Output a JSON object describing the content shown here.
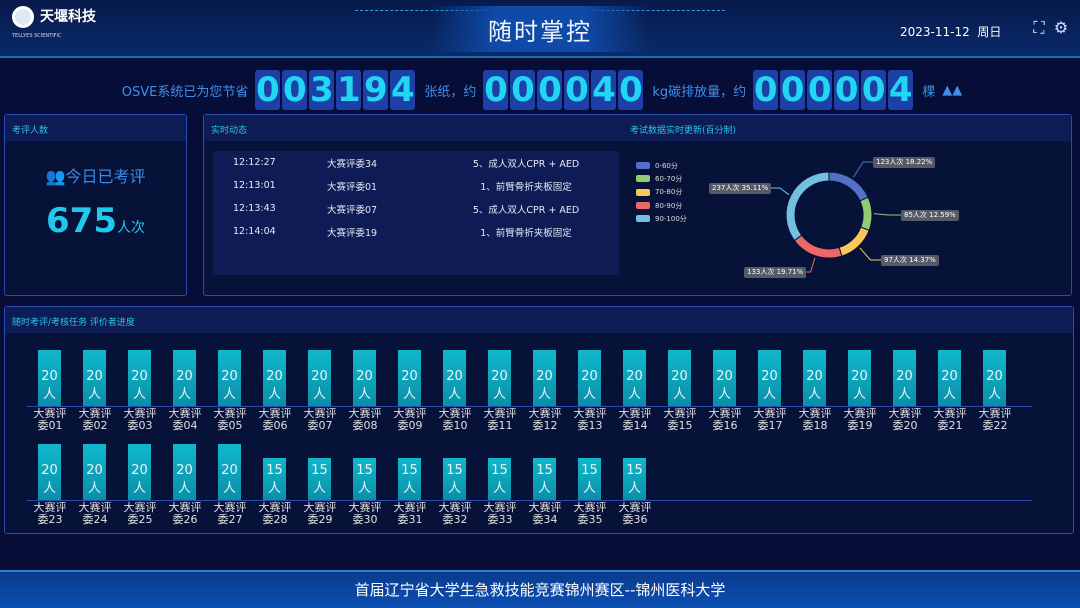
{
  "header": {
    "logo_cn": "天堰科技",
    "logo_en": "TELLYES SCIENTIFIC",
    "title": "随时掌控",
    "date": "2023-11-12",
    "weekday": "周日",
    "icons": [
      "fullscreen-icon",
      "gear-icon"
    ]
  },
  "counter": {
    "prefix": "OSVE系统已为您节省",
    "paper": "003194",
    "paper_unit": "张纸，约",
    "carbon": "000040",
    "carbon_unit": "kg碳排放量，约",
    "trees": "000004",
    "trees_unit": "棵",
    "tree_icon": "tree-icon"
  },
  "reviewers_panel": {
    "title": "考评人数",
    "label": "今日已考评",
    "count": "675",
    "unit": "人次"
  },
  "feed_panel": {
    "title": "实时动态",
    "rows": [
      [
        "12:12:27",
        "大赛评委34",
        "5、成人双人CPR + AED"
      ],
      [
        "12:13:01",
        "大赛评委01",
        "1、前臂骨折夹板固定"
      ],
      [
        "12:13:43",
        "大赛评委07",
        "5、成人双人CPR + AED"
      ],
      [
        "12:14:04",
        "大赛评委19",
        "1、前臂骨折夹板固定"
      ]
    ]
  },
  "chart_data": [
    {
      "type": "pie",
      "title": "考试数据实时更新(百分制)",
      "legend_position": "left",
      "categories": [
        "0-60分",
        "60-70分",
        "70-80分",
        "80-90分",
        "90-100分"
      ],
      "values": [
        123,
        85,
        97,
        133,
        237
      ],
      "labels": [
        "123人次 18.22%",
        "85人次 12.59%",
        "97人次 14.37%",
        "133人次 19.71%",
        "237人次 35.11%"
      ],
      "colors": [
        "#5470c6",
        "#91cc75",
        "#fac858",
        "#ee6666",
        "#73c0de"
      ]
    },
    {
      "type": "bar",
      "title": "随时考评/考核任务 评价者进度",
      "unit": "人",
      "categories": [
        "大赛评委01",
        "大赛评委02",
        "大赛评委03",
        "大赛评委04",
        "大赛评委05",
        "大赛评委06",
        "大赛评委07",
        "大赛评委08",
        "大赛评委09",
        "大赛评委10",
        "大赛评委11",
        "大赛评委12",
        "大赛评委13",
        "大赛评委14",
        "大赛评委15",
        "大赛评委16",
        "大赛评委17",
        "大赛评委18",
        "大赛评委19",
        "大赛评委20",
        "大赛评委21",
        "大赛评委22",
        "大赛评委23",
        "大赛评委24",
        "大赛评委25",
        "大赛评委26",
        "大赛评委27",
        "大赛评委28",
        "大赛评委29",
        "大赛评委30",
        "大赛评委31",
        "大赛评委32",
        "大赛评委33",
        "大赛评委34",
        "大赛评委35",
        "大赛评委36"
      ],
      "values": [
        20,
        20,
        20,
        20,
        20,
        20,
        20,
        20,
        20,
        20,
        20,
        20,
        20,
        20,
        20,
        20,
        20,
        20,
        20,
        20,
        20,
        20,
        20,
        20,
        20,
        20,
        20,
        15,
        15,
        15,
        15,
        15,
        15,
        15,
        15,
        15
      ]
    }
  ],
  "footer": {
    "text": "首届辽宁省大学生急救技能竞赛锦州赛区--锦州医科大学"
  }
}
